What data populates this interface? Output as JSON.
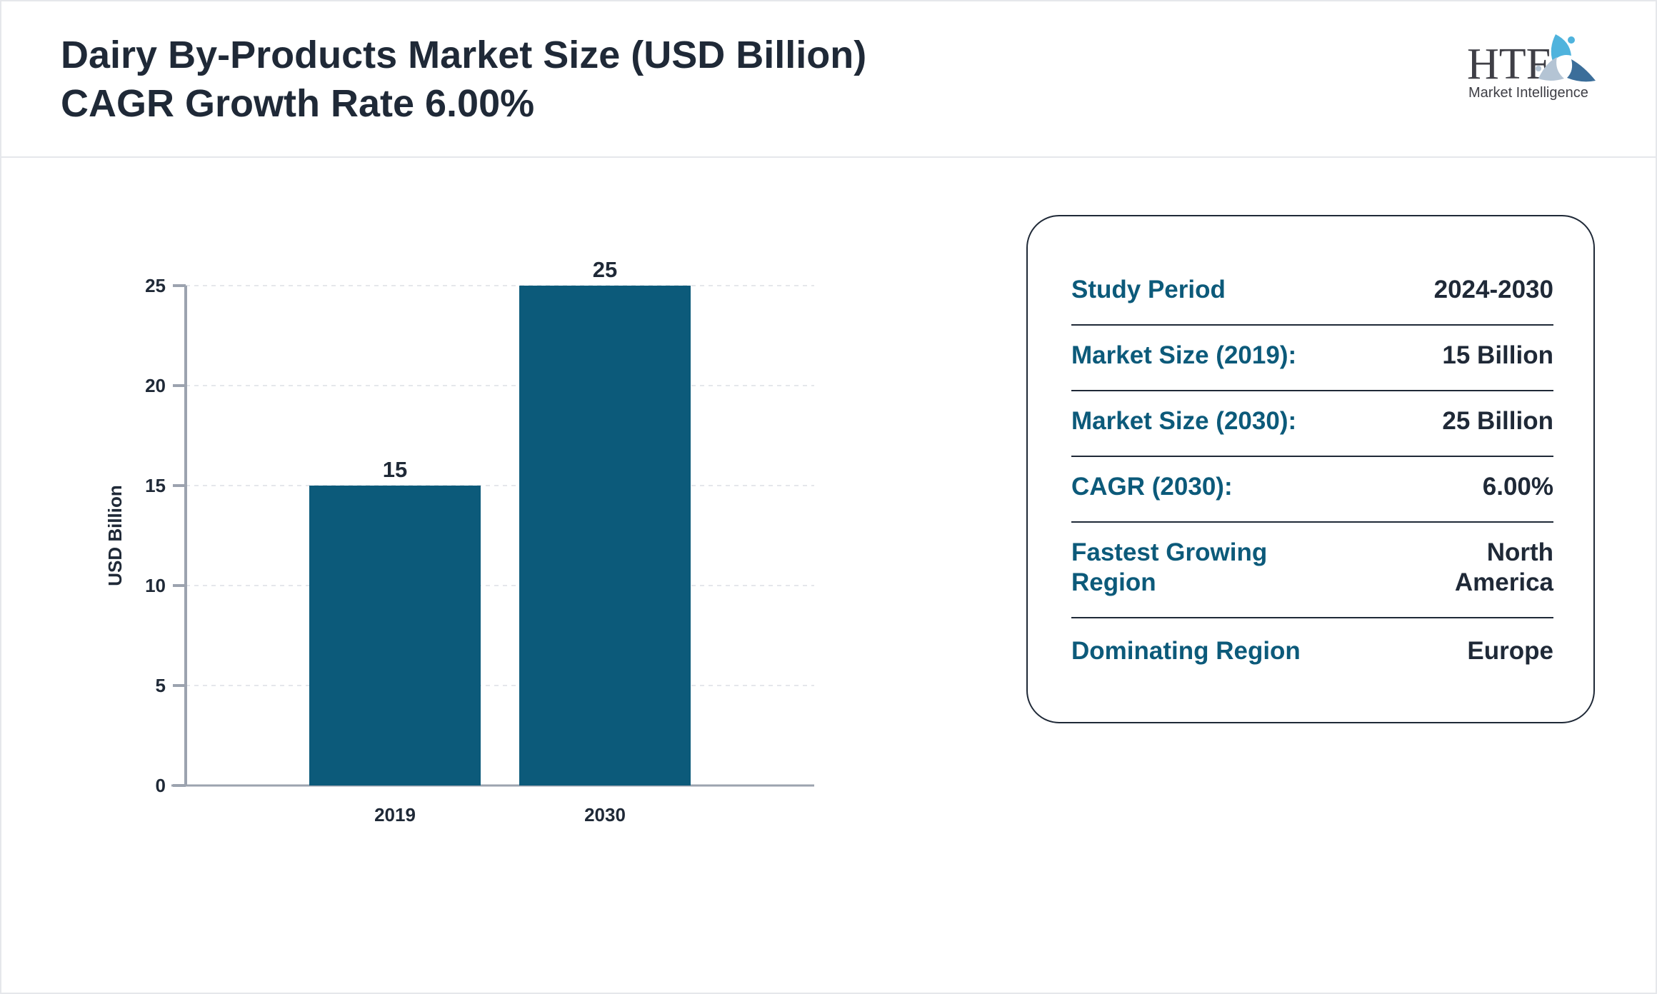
{
  "header": {
    "title_line1": "Dairy By-Products Market Size (USD Billion)",
    "title_line2": "CAGR Growth Rate 6.00%",
    "logo_text": "HTF Market Intelligence"
  },
  "chart_data": {
    "type": "bar",
    "categories": [
      "2019",
      "2030"
    ],
    "values": [
      15,
      25
    ],
    "data_labels": [
      "15",
      "25"
    ],
    "ylabel": "USD Billion",
    "xlabel": "",
    "ylim": [
      0,
      25
    ],
    "yticks": [
      "0",
      "5",
      "10",
      "15",
      "20",
      "25"
    ],
    "grid": true,
    "bar_color": "#0c5a7a"
  },
  "info": {
    "rows": [
      {
        "label": "Study Period",
        "value": "2024-2030"
      },
      {
        "label": "Market Size (2019):",
        "value": "15 Billion"
      },
      {
        "label": "Market Size (2030):",
        "value": "25 Billion"
      },
      {
        "label": "CAGR (2030):",
        "value": "6.00%"
      },
      {
        "label": "Fastest Growing Region",
        "value": "North America"
      },
      {
        "label": "Dominating Region",
        "value": "Europe"
      }
    ]
  },
  "colors": {
    "accent": "#0c5a7a",
    "text": "#1f2937",
    "axis": "#9ca3af"
  }
}
